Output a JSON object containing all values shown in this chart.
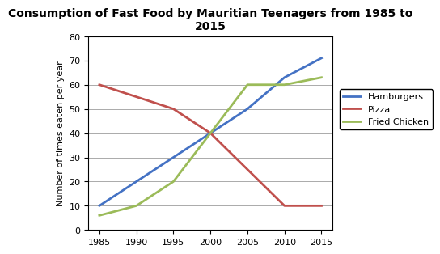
{
  "title": "Consumption of Fast Food by Mauritian Teenagers from 1985 to\n2015",
  "ylabel": "Number of times eaten per year",
  "years": [
    1985,
    1990,
    1995,
    2000,
    2005,
    2010,
    2015
  ],
  "hamburgers": [
    10,
    20,
    30,
    40,
    50,
    63,
    71
  ],
  "pizza": [
    60,
    55,
    50,
    40,
    25,
    10,
    10
  ],
  "fried_chicken": [
    6,
    10,
    20,
    40,
    60,
    60,
    63
  ],
  "hamburgers_color": "#4472C4",
  "pizza_color": "#C0504D",
  "fried_chicken_color": "#9BBB59",
  "ylim": [
    0,
    80
  ],
  "yticks": [
    0,
    10,
    20,
    30,
    40,
    50,
    60,
    70,
    80
  ],
  "xticks": [
    1985,
    1990,
    1995,
    2000,
    2005,
    2010,
    2015
  ],
  "legend_labels": [
    "Hamburgers",
    "Pizza",
    "Fried Chicken"
  ],
  "title_fontsize": 10,
  "axis_label_fontsize": 8,
  "tick_fontsize": 8,
  "legend_fontsize": 8,
  "linewidth": 2
}
